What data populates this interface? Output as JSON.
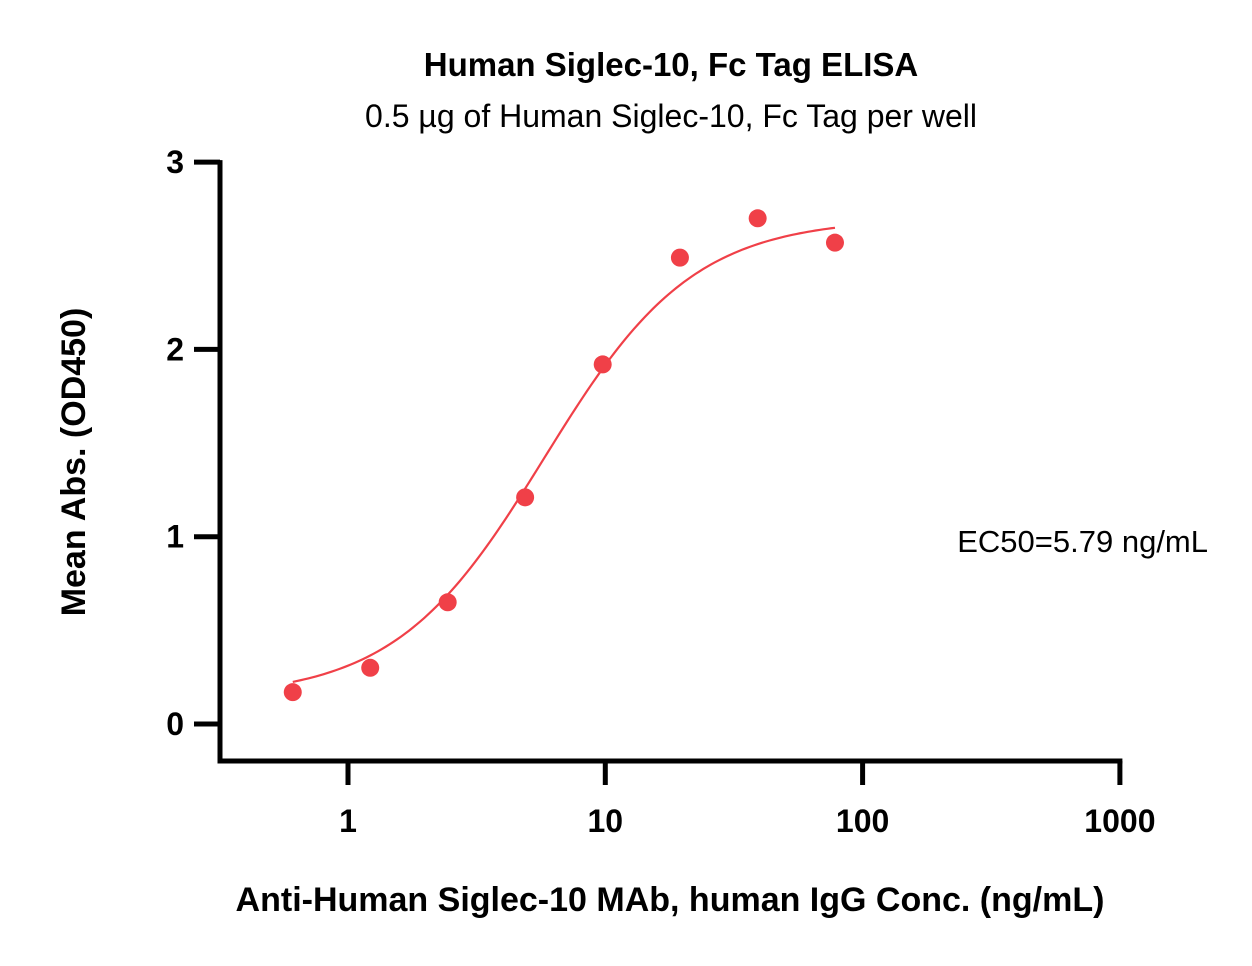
{
  "chart_data": {
    "type": "scatter",
    "title": "Human Siglec-10, Fc Tag ELISA",
    "subtitle": "0.5 µg of Human Siglec-10, Fc Tag per well",
    "xlabel": "Anti-Human Siglec-10 MAb, human IgG Conc. (ng/mL)",
    "ylabel": "Mean Abs. (OD450)",
    "x_scale": "log",
    "xlim": [
      0.3,
      1000
    ],
    "ylim": [
      -0.2,
      3
    ],
    "x_ticks": [
      1,
      10,
      100,
      1000
    ],
    "x_tick_labels": [
      "1",
      "10",
      "100",
      "1000"
    ],
    "y_ticks": [
      0,
      1,
      2,
      3
    ],
    "y_tick_labels": [
      "0",
      "1",
      "2",
      "3"
    ],
    "grid": false,
    "color": "#f04048",
    "points": {
      "x": [
        0.61,
        1.22,
        2.44,
        4.88,
        9.77,
        19.5,
        39.1,
        78.1
      ],
      "y": [
        0.17,
        0.3,
        0.65,
        1.21,
        1.92,
        2.49,
        2.7,
        2.57
      ]
    },
    "fit": {
      "model": "4PL",
      "bottom": 0.14,
      "top": 2.7,
      "ec50": 5.79,
      "hill": 1.5
    },
    "annotations": [
      "EC50=5.79 ng/mL"
    ]
  }
}
